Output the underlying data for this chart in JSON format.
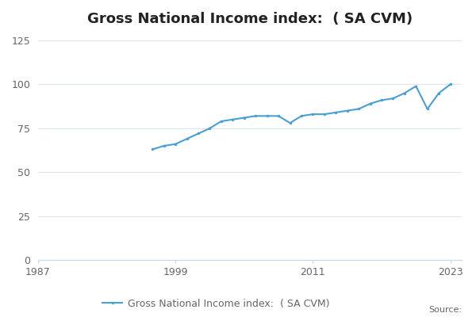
{
  "title": "Gross National Income index:  ( SA CVM)",
  "legend_label": "Gross National Income index:  ( SA CVM)",
  "source_text": "Source:",
  "line_color": "#4a9fd4",
  "marker": "o",
  "marker_size": 2.5,
  "line_width": 1.5,
  "x_data": [
    1997,
    1998,
    1999,
    2000,
    2001,
    2002,
    2003,
    2004,
    2005,
    2006,
    2007,
    2008,
    2009,
    2010,
    2011,
    2012,
    2013,
    2014,
    2015,
    2016,
    2017,
    2018,
    2019,
    2020,
    2021,
    2022,
    2023
  ],
  "y_data": [
    63,
    65,
    66,
    69,
    72,
    75,
    79,
    80,
    81,
    82,
    82,
    82,
    78,
    82,
    83,
    83,
    84,
    85,
    86,
    89,
    91,
    92,
    95,
    99,
    86,
    95,
    100
  ],
  "xlim": [
    1987,
    2024
  ],
  "ylim": [
    0,
    130
  ],
  "yticks": [
    0,
    25,
    50,
    75,
    100,
    125
  ],
  "xticks": [
    1987,
    1999,
    2011,
    2023
  ],
  "background_color": "#ffffff",
  "grid_color": "#dce6f0",
  "axis_line_color": "#c8d8e8",
  "tick_label_color": "#666666",
  "title_fontsize": 13,
  "tick_fontsize": 9,
  "legend_fontsize": 9,
  "source_fontsize": 8
}
